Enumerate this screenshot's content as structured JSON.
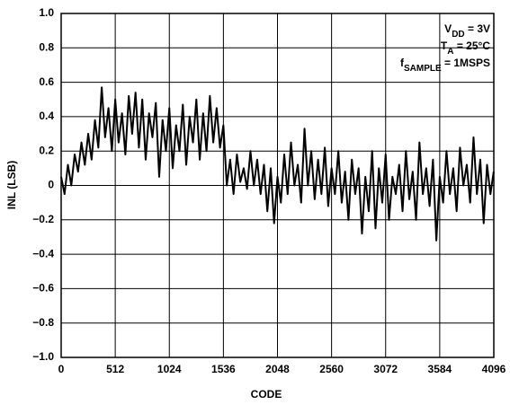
{
  "chart_data": {
    "type": "line",
    "xlabel": "CODE",
    "ylabel": "INL (LSB)",
    "annotations": [
      [
        "V",
        "DD",
        " = 3V"
      ],
      [
        "T",
        "A",
        " = 25°C"
      ],
      [
        "f",
        "SAMPLE",
        " = 1MSPS"
      ]
    ],
    "x": [
      0,
      32,
      64,
      96,
      128,
      160,
      192,
      224,
      256,
      288,
      320,
      352,
      384,
      416,
      448,
      480,
      512,
      544,
      576,
      608,
      640,
      672,
      704,
      736,
      768,
      800,
      832,
      864,
      896,
      928,
      960,
      992,
      1024,
      1056,
      1088,
      1120,
      1152,
      1184,
      1216,
      1248,
      1280,
      1312,
      1344,
      1376,
      1408,
      1440,
      1472,
      1504,
      1536,
      1568,
      1600,
      1632,
      1664,
      1696,
      1728,
      1760,
      1792,
      1824,
      1856,
      1888,
      1920,
      1952,
      1984,
      2016,
      2048,
      2080,
      2112,
      2144,
      2176,
      2208,
      2240,
      2272,
      2304,
      2336,
      2368,
      2400,
      2432,
      2464,
      2496,
      2528,
      2560,
      2592,
      2624,
      2656,
      2688,
      2720,
      2752,
      2784,
      2816,
      2848,
      2880,
      2912,
      2944,
      2976,
      3008,
      3040,
      3072,
      3104,
      3136,
      3168,
      3200,
      3232,
      3264,
      3296,
      3328,
      3360,
      3392,
      3424,
      3456,
      3488,
      3520,
      3552,
      3584,
      3616,
      3648,
      3680,
      3712,
      3744,
      3776,
      3808,
      3840,
      3872,
      3904,
      3936,
      3968,
      4000,
      4032,
      4064,
      4095
    ],
    "values": [
      0.05,
      -0.05,
      0.12,
      0.0,
      0.18,
      0.08,
      0.25,
      0.12,
      0.3,
      0.15,
      0.38,
      0.22,
      0.57,
      0.28,
      0.45,
      0.2,
      0.5,
      0.25,
      0.42,
      0.18,
      0.52,
      0.3,
      0.54,
      0.22,
      0.5,
      0.15,
      0.42,
      0.28,
      0.48,
      0.05,
      0.38,
      0.2,
      0.45,
      0.1,
      0.35,
      0.2,
      0.47,
      0.12,
      0.4,
      0.25,
      0.5,
      0.15,
      0.42,
      0.2,
      0.52,
      0.25,
      0.45,
      0.22,
      0.35,
      0.0,
      0.15,
      -0.05,
      0.18,
      0.02,
      0.1,
      -0.02,
      0.2,
      0.0,
      0.15,
      -0.05,
      0.12,
      -0.15,
      0.1,
      -0.22,
      0.05,
      -0.1,
      0.18,
      -0.05,
      0.25,
      0.0,
      0.12,
      -0.1,
      0.33,
      0.0,
      0.2,
      -0.08,
      0.15,
      -0.05,
      0.22,
      -0.12,
      0.1,
      -0.05,
      0.2,
      -0.1,
      0.08,
      -0.2,
      0.15,
      -0.05,
      0.1,
      -0.28,
      0.05,
      -0.15,
      0.2,
      -0.25,
      0.1,
      -0.1,
      0.18,
      -0.2,
      0.05,
      -0.05,
      0.12,
      -0.15,
      0.2,
      -0.08,
      0.08,
      -0.2,
      0.25,
      -0.05,
      0.1,
      -0.12,
      0.15,
      -0.32,
      0.05,
      -0.1,
      0.2,
      -0.05,
      0.1,
      -0.15,
      0.22,
      0.0,
      0.12,
      -0.1,
      0.28,
      -0.05,
      0.15,
      -0.22,
      0.12,
      -0.05,
      0.08
    ],
    "color": "#000000",
    "xlim": [
      0,
      4096
    ],
    "xticks": [
      0,
      512,
      1024,
      1536,
      2048,
      2560,
      3072,
      3584,
      4096
    ],
    "ylim": [
      -1,
      1
    ],
    "yticks": [
      {
        "value": -1,
        "label": "−1.0"
      },
      {
        "value": -0.8,
        "label": "−0.8"
      },
      {
        "value": -0.6,
        "label": "−0.6"
      },
      {
        "value": -0.4,
        "label": "−0.4"
      },
      {
        "value": -0.2,
        "label": "−0.2"
      },
      0,
      0.2,
      0.4,
      0.6,
      0.8,
      {
        "value": 1,
        "label": "1.0"
      }
    ],
    "grid": true
  }
}
